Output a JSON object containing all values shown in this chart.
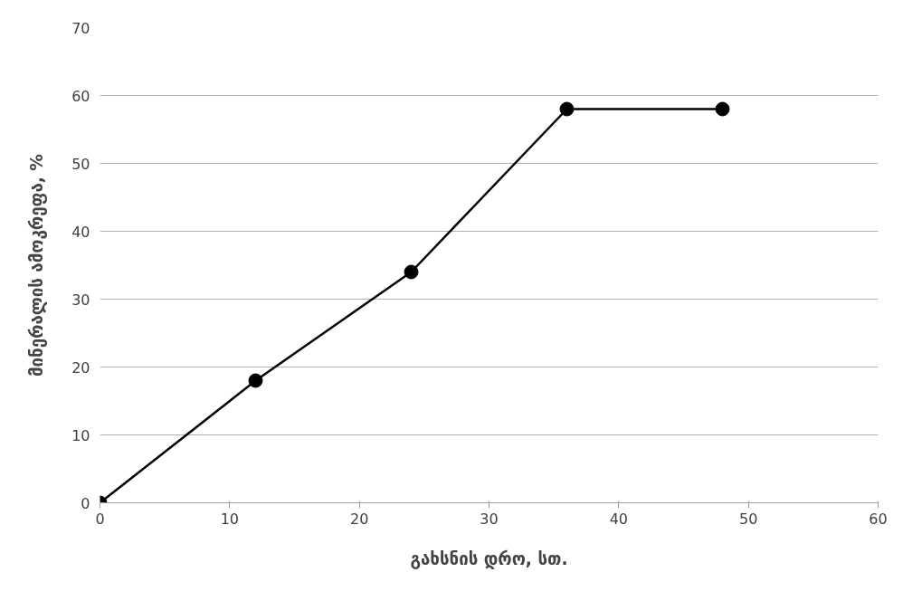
{
  "chart_data": {
    "type": "line",
    "xlabel": "გახსნის დრო, სთ.",
    "ylabel": "მინერალის ამოკრეფა, %",
    "x": [
      0,
      12,
      24,
      36,
      48
    ],
    "series": [
      {
        "color": "#000000",
        "values": [
          0,
          18,
          34,
          58,
          58
        ]
      }
    ],
    "xlim": [
      0,
      60
    ],
    "xticks": [
      0,
      10,
      20,
      30,
      40,
      50,
      60
    ],
    "ylim": [
      0,
      70
    ],
    "yticks": [
      0,
      10,
      20,
      30,
      40,
      50,
      60,
      70
    ],
    "grid": "y",
    "marker": "circle",
    "line_style": "solid"
  }
}
